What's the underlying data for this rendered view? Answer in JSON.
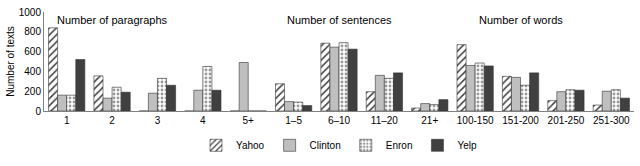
{
  "chart_data": {
    "type": "bar",
    "y_label": "Number of texts",
    "categories": [
      "1",
      "2",
      "3",
      "4",
      "5+",
      "1–5",
      "6–10",
      "11–20",
      "21+",
      "100-150",
      "151-200",
      "201-250",
      "251-300"
    ],
    "series": [
      {
        "name": "Yahoo",
        "color": "#404040",
        "marker": "hatched",
        "values": [
          840,
          355,
          0,
          0,
          0,
          275,
          685,
          195,
          30,
          670,
          350,
          105,
          60
        ]
      },
      {
        "name": "Clinton",
        "color": "#bfbfbf",
        "marker": "solid",
        "values": [
          160,
          130,
          180,
          210,
          490,
          95,
          645,
          360,
          75,
          460,
          340,
          195,
          200
        ]
      },
      {
        "name": "Enron",
        "color": "#999999",
        "marker": "dotted",
        "values": [
          160,
          240,
          330,
          450,
          0,
          90,
          690,
          330,
          65,
          485,
          260,
          215,
          215
        ]
      },
      {
        "name": "Yelp",
        "color": "#404040",
        "marker": "solid",
        "values": [
          520,
          190,
          260,
          210,
          0,
          55,
          625,
          385,
          115,
          455,
          385,
          210,
          130
        ]
      }
    ],
    "annotations": [
      {
        "text": "Number of paragraphs",
        "category": "2"
      },
      {
        "text": "Number of sentences",
        "category": "6–10"
      },
      {
        "text": "Number of words",
        "category": "151-200"
      }
    ],
    "ylim": [
      0,
      1000
    ],
    "yticks": [
      0,
      200,
      400,
      600,
      800,
      1000
    ],
    "grid": false,
    "legend": "bottom"
  }
}
